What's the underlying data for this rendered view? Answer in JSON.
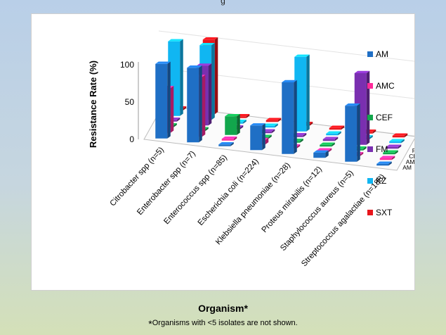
{
  "top_caption": "g",
  "chart_data": {
    "type": "bar",
    "subtype": "3d-grouped-column",
    "categories": [
      "Citrobacter spp (n=5)",
      "Enterobacter spp (n=7)",
      "Enterococcus spp (n=85)",
      "Escherichia coli (n=224)",
      "Klebsiella pneumoniae (n=28)",
      "Proteus mirabilis (n=12)",
      "Staphylococcus aureus (n=5)",
      "Streptococcus agalactiae (n=188)"
    ],
    "series": [
      {
        "name": "AM",
        "color": "#1f6fc5",
        "values": [
          100,
          100,
          0,
          33,
          96,
          7,
          75,
          0
        ]
      },
      {
        "name": "AMC",
        "color": "#ff2a9a",
        "values": [
          60,
          80,
          0,
          6,
          0,
          0,
          0,
          0
        ]
      },
      {
        "name": "CEF",
        "color": "#12a64c",
        "values": [
          0,
          0,
          25,
          0,
          0,
          0,
          0,
          0
        ]
      },
      {
        "name": "FM",
        "color": "#7a2fb0",
        "values": [
          0,
          80,
          0,
          0,
          0,
          0,
          96,
          0
        ]
      },
      {
        "name": "KZ",
        "color": "#10b6f2",
        "values": [
          100,
          100,
          0,
          0,
          100,
          0,
          0,
          0
        ]
      },
      {
        "name": "SXT",
        "color": "#e8151b",
        "values": [
          0,
          100,
          0,
          0,
          0,
          0,
          0,
          0
        ]
      }
    ],
    "ylabel": "Resistance Rate (%)",
    "xlabel": "Organism*",
    "ylim": [
      0,
      100
    ],
    "yticks": [
      "0",
      "50",
      "100"
    ],
    "depth_labels": [
      "AM",
      "AMC",
      "CEF",
      "FM",
      "KZ",
      "SXT"
    ],
    "legend_position": "right",
    "footnote": "Organisms with <5 isolates are not shown."
  }
}
